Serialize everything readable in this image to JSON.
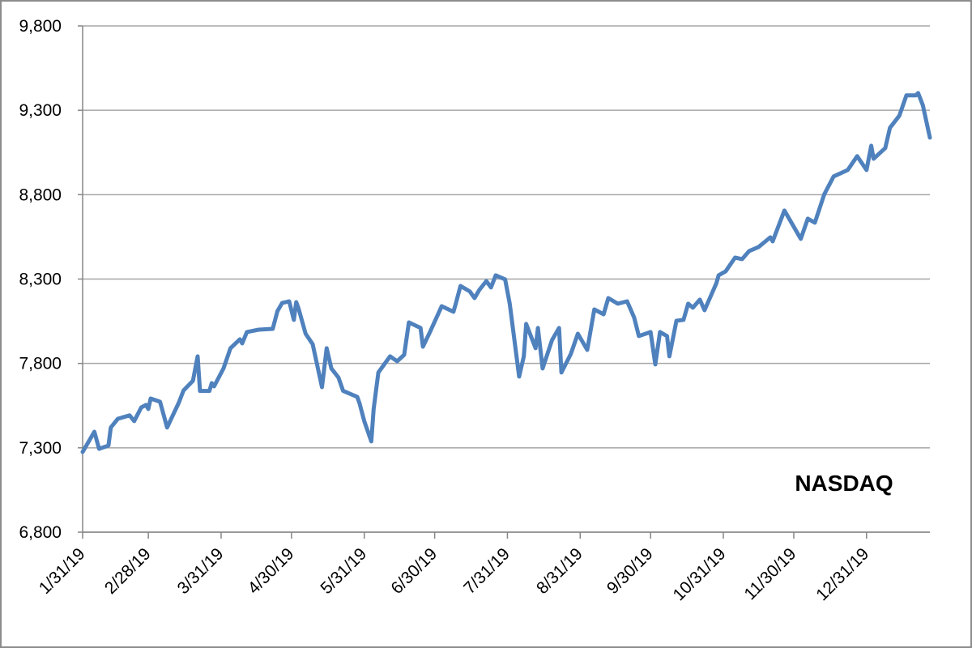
{
  "chart_data": {
    "type": "line",
    "x": [
      "1/31/19",
      "2/5/19",
      "2/7/19",
      "2/11/19",
      "2/12/19",
      "2/15/19",
      "2/20/19",
      "2/22/19",
      "2/25/19",
      "2/27/19",
      "2/28/19",
      "3/1/19",
      "3/5/19",
      "3/8/19",
      "3/13/19",
      "3/15/19",
      "3/19/19",
      "3/21/19",
      "3/22/19",
      "3/26/19",
      "3/27/19",
      "3/28/19",
      "4/1/19",
      "4/4/19",
      "4/8/19",
      "4/9/19",
      "4/11/19",
      "4/16/19",
      "4/22/19",
      "4/24/19",
      "4/26/19",
      "4/29/19",
      "5/1/19",
      "5/2/19",
      "5/3/19",
      "5/6/19",
      "5/9/19",
      "5/13/19",
      "5/15/19",
      "5/17/19",
      "5/20/19",
      "5/22/19",
      "5/28/19",
      "5/29/19",
      "5/31/19",
      "6/3/19",
      "6/4/19",
      "6/6/19",
      "6/11/19",
      "6/14/19",
      "6/17/19",
      "6/19/19",
      "6/24/19",
      "6/25/19",
      "6/28/19",
      "7/3/19",
      "7/8/19",
      "7/9/19",
      "7/11/19",
      "7/15/19",
      "7/17/19",
      "7/19/19",
      "7/22/19",
      "7/24/19",
      "7/26/19",
      "7/30/19",
      "8/1/19",
      "8/5/19",
      "8/7/19",
      "8/8/19",
      "8/12/19",
      "8/13/19",
      "8/15/19",
      "8/19/19",
      "8/22/19",
      "8/23/19",
      "8/27/19",
      "8/30/19",
      "9/3/19",
      "9/6/19",
      "9/10/19",
      "9/12/19",
      "9/16/19",
      "9/20/19",
      "9/23/19",
      "9/25/19",
      "9/30/19",
      "10/2/19",
      "10/4/19",
      "10/7/19",
      "10/8/19",
      "10/11/19",
      "10/14/19",
      "10/16/19",
      "10/18/19",
      "10/21/19",
      "10/23/19",
      "10/28/19",
      "10/29/19",
      "11/1/19",
      "11/5/19",
      "11/8/19",
      "11/11/19",
      "11/15/19",
      "11/20/19",
      "11/21/19",
      "11/26/19",
      "12/3/19",
      "12/6/19",
      "12/9/19",
      "12/13/19",
      "12/17/19",
      "12/23/19",
      "12/27/19",
      "12/31/19",
      "1/2/20",
      "1/3/20",
      "1/8/20",
      "1/10/20",
      "1/14/20",
      "1/17/20",
      "1/21/20",
      "1/22/20",
      "1/24/20",
      "1/27/20"
    ],
    "series": [
      {
        "name": "NASDAQ",
        "color": "#4f81bd",
        "values": [
          7275,
          7395,
          7294,
          7313,
          7420,
          7472,
          7492,
          7458,
          7539,
          7554,
          7530,
          7592,
          7573,
          7420,
          7568,
          7640,
          7697,
          7842,
          7637,
          7637,
          7683,
          7664,
          7770,
          7890,
          7943,
          7919,
          7986,
          8000,
          8005,
          8110,
          8158,
          8168,
          8058,
          8163,
          8125,
          7976,
          7914,
          7659,
          7890,
          7770,
          7717,
          7637,
          7602,
          7563,
          7458,
          7338,
          7530,
          7746,
          7842,
          7813,
          7851,
          8043,
          8010,
          7899,
          7986,
          8139,
          8106,
          8154,
          8259,
          8226,
          8187,
          8235,
          8288,
          8250,
          8322,
          8298,
          8154,
          7722,
          7842,
          8034,
          7890,
          8010,
          7770,
          7938,
          8010,
          7746,
          7856,
          7976,
          7880,
          8120,
          8091,
          8187,
          8154,
          8168,
          8072,
          7962,
          7986,
          7794,
          7986,
          7962,
          7842,
          8053,
          8058,
          8154,
          8130,
          8178,
          8115,
          8274,
          8322,
          8346,
          8427,
          8418,
          8466,
          8490,
          8547,
          8523,
          8706,
          8538,
          8658,
          8634,
          8802,
          8908,
          8946,
          9028,
          8946,
          9090,
          9013,
          9076,
          9196,
          9268,
          9388,
          9388,
          9402,
          9330,
          9138
        ]
      }
    ],
    "xlim": [
      "1/31/19",
      "1/27/20"
    ],
    "xticks": [
      "1/31/19",
      "2/28/19",
      "3/31/19",
      "4/30/19",
      "5/31/19",
      "6/30/19",
      "7/31/19",
      "8/31/19",
      "9/30/19",
      "10/31/19",
      "11/30/19",
      "12/31/19"
    ],
    "ylim": [
      6800,
      9800
    ],
    "yticks": [
      {
        "value": 6800,
        "label": "6,800"
      },
      {
        "value": 7300,
        "label": "7,300"
      },
      {
        "value": 7800,
        "label": "7,800"
      },
      {
        "value": 8300,
        "label": "8,300"
      },
      {
        "value": 8800,
        "label": "8,800"
      },
      {
        "value": 9300,
        "label": "9,300"
      },
      {
        "value": 9800,
        "label": "9,800"
      }
    ],
    "grid": true
  }
}
